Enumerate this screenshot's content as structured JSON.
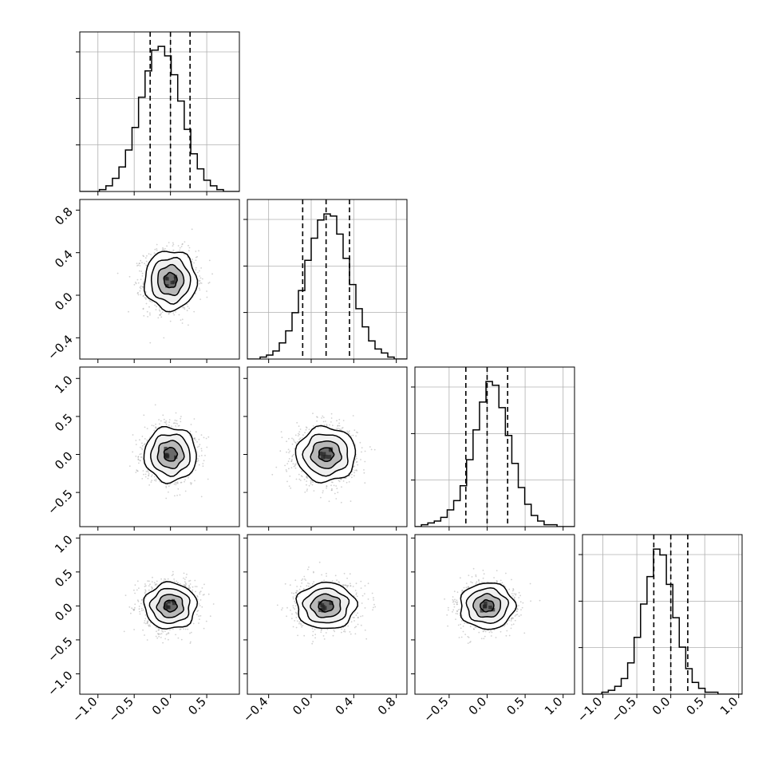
{
  "chart_data": {
    "type": "corner",
    "n_params": 4,
    "ranges": [
      [
        -1.25,
        0.95
      ],
      [
        -0.6,
        0.9
      ],
      [
        -0.95,
        1.15
      ],
      [
        -1.3,
        1.05
      ]
    ],
    "ticks": [
      {
        "values": [
          -1.0,
          -0.5,
          0.0,
          0.5
        ],
        "labels": [
          "−1.0",
          "−0.5",
          "0.0",
          "0.5"
        ]
      },
      {
        "values": [
          -0.4,
          0.0,
          0.4,
          0.8
        ],
        "labels": [
          "−0.4",
          "0.0",
          "0.4",
          "0.8"
        ]
      },
      {
        "values": [
          -0.5,
          0.0,
          0.5,
          1.0
        ],
        "labels": [
          "−0.5",
          "0.0",
          "0.5",
          "1.0"
        ]
      },
      {
        "values": [
          -1.0,
          -0.5,
          0.0,
          0.5,
          1.0
        ],
        "labels": [
          "−1.0",
          "−0.5",
          "0.0",
          "0.5",
          "1.0"
        ]
      }
    ],
    "quantiles": [
      [
        -0.28,
        0.0,
        0.27
      ],
      [
        -0.08,
        0.14,
        0.36
      ],
      [
        -0.28,
        0.0,
        0.27
      ],
      [
        -0.25,
        0.0,
        0.25
      ]
    ],
    "histograms": [
      {
        "bin_start": -1.25,
        "bin_width": 0.09,
        "counts": [
          0,
          0,
          0,
          1,
          3,
          7,
          13,
          22,
          34,
          50,
          64,
          75,
          77,
          72,
          62,
          48,
          33,
          20,
          12,
          6,
          3,
          1,
          0,
          0,
          0
        ]
      },
      {
        "bin_start": -0.6,
        "bin_width": 0.06,
        "counts": [
          0,
          0,
          1,
          2,
          4,
          8,
          14,
          23,
          34,
          49,
          60,
          69,
          72,
          71,
          62,
          50,
          37,
          25,
          16,
          9,
          5,
          3,
          1,
          0,
          0
        ]
      },
      {
        "bin_start": -0.95,
        "bin_width": 0.085,
        "counts": [
          0,
          1,
          2,
          3,
          5,
          9,
          14,
          22,
          36,
          52,
          67,
          78,
          76,
          64,
          49,
          34,
          21,
          12,
          6,
          3,
          1,
          1,
          0,
          0,
          0
        ]
      },
      {
        "bin_start": -1.3,
        "bin_width": 0.095,
        "counts": [
          0,
          0,
          0,
          1,
          2,
          4,
          8,
          16,
          29,
          46,
          60,
          74,
          71,
          56,
          39,
          24,
          13,
          6,
          3,
          1,
          1,
          0,
          0,
          0,
          0
        ]
      }
    ],
    "hist_tick_fractions": [
      0.875,
      0.583,
      0.292
    ],
    "pairs": [
      {
        "row": 1,
        "col": 0,
        "mean": [
          0.0,
          0.14
        ],
        "sd": [
          0.18,
          0.14
        ]
      },
      {
        "row": 2,
        "col": 0,
        "mean": [
          0.0,
          0.0
        ],
        "sd": [
          0.18,
          0.18
        ]
      },
      {
        "row": 2,
        "col": 1,
        "mean": [
          0.14,
          0.0
        ],
        "sd": [
          0.14,
          0.18
        ]
      },
      {
        "row": 3,
        "col": 0,
        "mean": [
          0.0,
          0.0
        ],
        "sd": [
          0.18,
          0.17
        ]
      },
      {
        "row": 3,
        "col": 1,
        "mean": [
          0.14,
          0.0
        ],
        "sd": [
          0.14,
          0.17
        ]
      },
      {
        "row": 3,
        "col": 2,
        "mean": [
          0.0,
          0.0
        ],
        "sd": [
          0.18,
          0.17
        ]
      }
    ],
    "contour_sigmas": [
      0.5,
      1.0,
      1.5,
      2.0
    ],
    "grid": true,
    "colors": {
      "line": "#000000",
      "points": "#9a9a9a",
      "grid": "#b0b0b0",
      "frame": "#000000"
    }
  }
}
